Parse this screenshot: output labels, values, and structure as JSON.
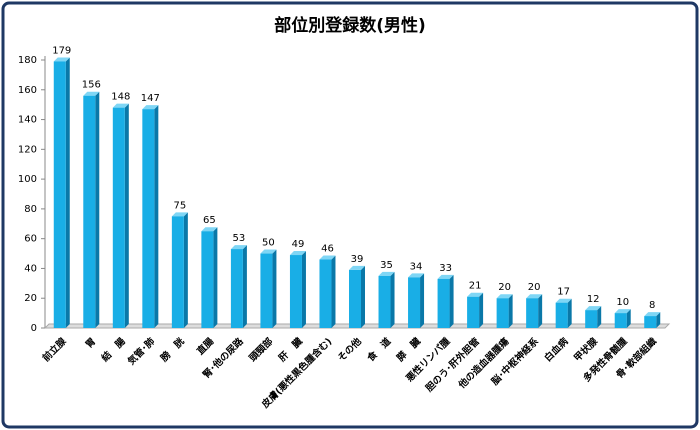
{
  "chart_data": {
    "type": "bar",
    "title": "部位別登録数(男性)",
    "categories": [
      "前立腺",
      "胃",
      "結　腸",
      "気管･肺",
      "膀　胱",
      "直腸",
      "腎･他の尿路",
      "頭頸部",
      "肝　臓",
      "皮膚(悪性黒色腫含む)",
      "その他",
      "食　道",
      "膵　臓",
      "悪性リンパ腫",
      "胆のう･肝外胆管",
      "他の造血器腫瘍",
      "脳･中枢神経系",
      "白血病",
      "甲状腺",
      "多発性骨髄腫",
      "骨･軟部組織"
    ],
    "values": [
      179,
      156,
      148,
      147,
      75,
      65,
      53,
      50,
      49,
      46,
      39,
      35,
      34,
      33,
      21,
      20,
      20,
      17,
      12,
      10,
      8
    ],
    "color": "#19aee6",
    "ylim": [
      0,
      180
    ],
    "yticks": [
      0,
      20,
      40,
      60,
      80,
      100,
      120,
      140,
      160,
      180
    ],
    "grid": false
  }
}
